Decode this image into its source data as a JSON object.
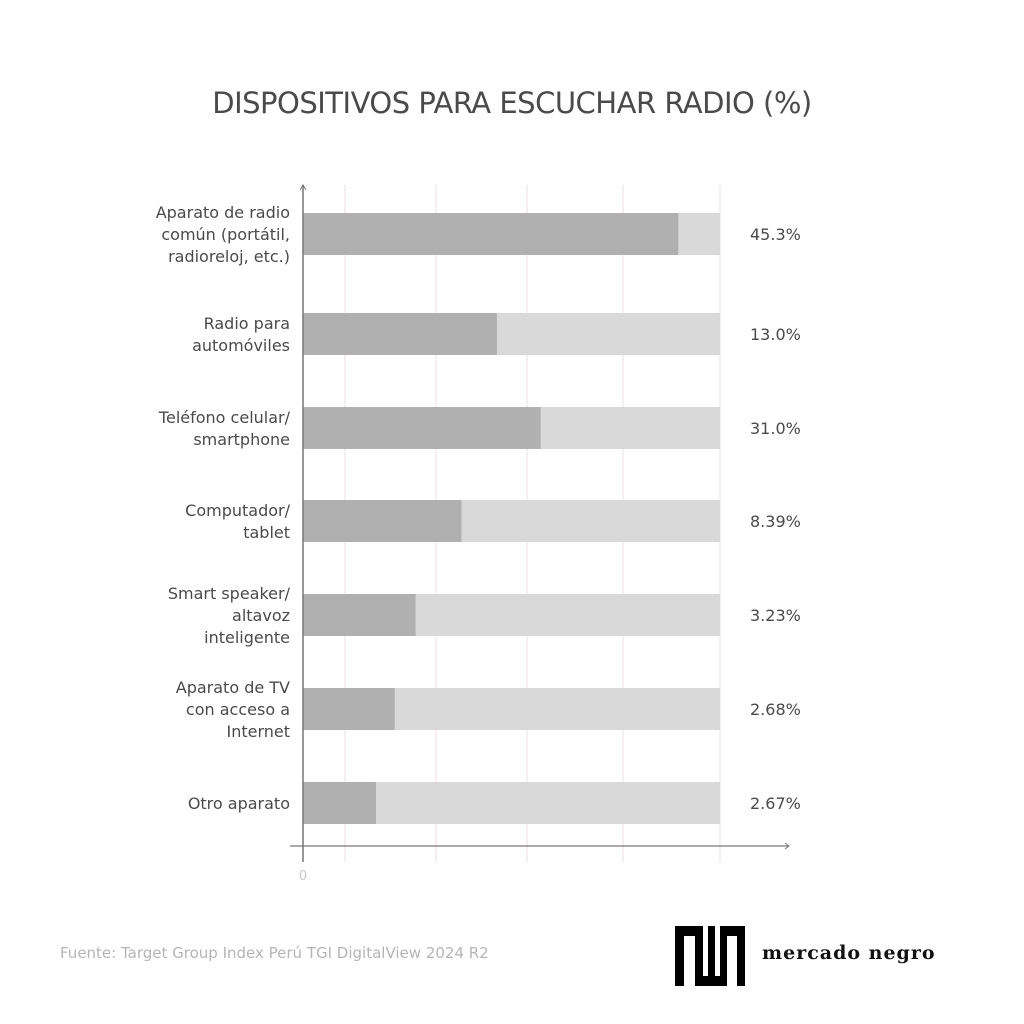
{
  "chart_data": {
    "type": "bar",
    "orientation": "horizontal",
    "title": "DISPOSITIVOS PARA ESCUCHAR RADIO (%)",
    "categories": [
      [
        "Aparato de radio",
        "común (portátil,",
        "radioreloj, etc.)"
      ],
      [
        "Radio para",
        "automóviles"
      ],
      [
        "Teléfono celular/",
        "smartphone"
      ],
      [
        "Computador/",
        "tablet"
      ],
      [
        "Smart speaker/",
        "altavoz",
        "inteligente"
      ],
      [
        "Aparato de TV",
        "con acceso a",
        "Internet"
      ],
      [
        "Otro aparato"
      ]
    ],
    "values": [
      45.3,
      13.0,
      31.0,
      8.39,
      3.23,
      2.68,
      2.67
    ],
    "value_labels": [
      "45.3%",
      "13.0%",
      "31.0%",
      "8.39%",
      "3.23%",
      "2.68%",
      "2.67%"
    ],
    "bar_fill_fraction": [
      0.9,
      0.465,
      0.57,
      0.38,
      0.27,
      0.22,
      0.175
    ],
    "x_tick_labels": [
      "0"
    ],
    "grid": true,
    "colors": {
      "bar": "#b0b0b0",
      "track": "#d9d9d9",
      "grid": "#ecdfe3",
      "axis": "#777777"
    }
  },
  "source": "Fuente: Target Group Index Perú TGI DigitalView 2024 R2",
  "logo": {
    "text": "mercado negro"
  }
}
